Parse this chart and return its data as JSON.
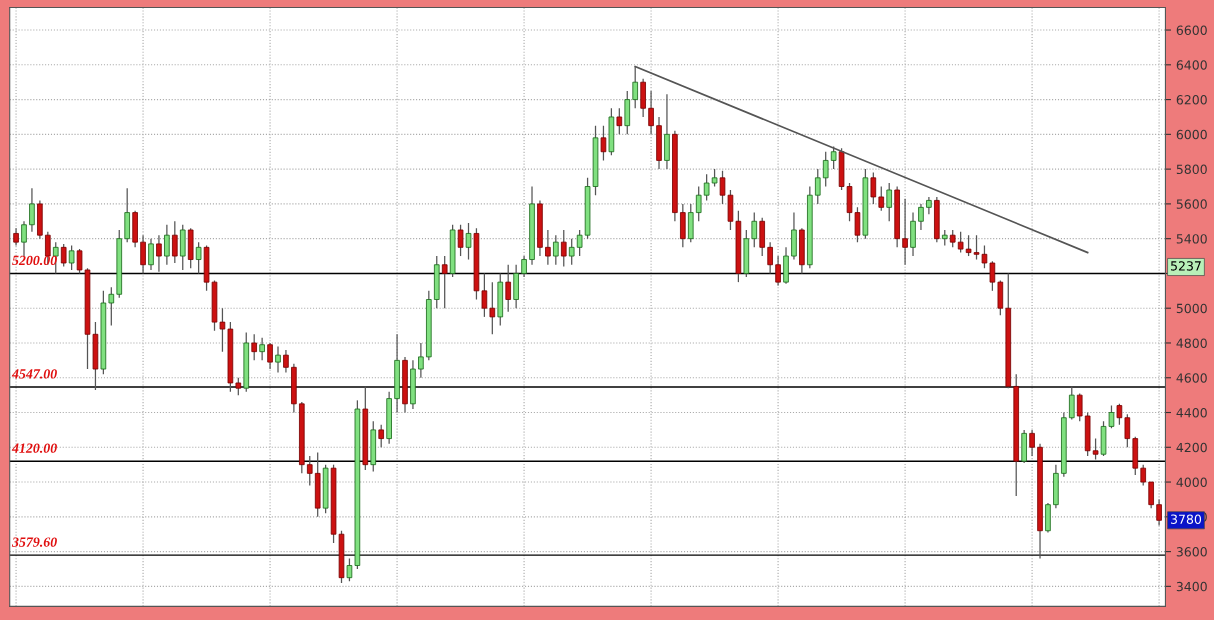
{
  "chart_data": {
    "type": "candlestick",
    "categories": [
      null,
      null,
      null,
      null,
      null,
      null,
      null,
      null,
      null,
      null,
      null,
      null,
      null,
      null,
      null,
      null,
      null,
      null,
      null,
      null,
      null,
      null,
      null,
      null,
      null,
      null,
      null,
      null,
      null,
      null,
      null,
      null,
      null,
      null,
      null,
      null,
      null,
      null,
      null,
      null,
      null,
      null,
      null,
      null,
      null,
      null,
      null,
      null,
      null,
      null,
      null,
      null,
      null,
      null,
      null,
      null,
      null,
      null,
      null,
      null,
      null,
      null,
      null,
      null,
      null,
      null,
      null,
      null,
      null,
      null,
      null,
      null,
      null,
      null,
      null,
      null,
      null,
      null,
      null,
      null,
      null,
      null,
      null,
      null,
      null,
      null,
      null,
      null,
      null,
      null,
      null,
      null,
      null,
      null,
      null,
      null,
      null,
      null,
      null,
      null,
      null,
      null,
      null,
      null,
      null,
      null,
      null,
      null,
      null,
      null,
      null,
      null,
      null,
      null,
      null,
      null,
      null,
      null,
      null,
      null,
      null,
      null,
      null,
      null,
      null,
      null,
      null,
      null,
      null,
      null,
      null,
      null,
      null,
      null,
      null,
      null,
      null,
      null,
      null,
      null,
      null,
      null,
      null,
      null,
      null
    ],
    "ohlc": [
      [
        5430,
        5460,
        5360,
        5380
      ],
      [
        5380,
        5500,
        5300,
        5480
      ],
      [
        5480,
        5690,
        5440,
        5600
      ],
      [
        5600,
        5620,
        5400,
        5420
      ],
      [
        5420,
        5440,
        5250,
        5300
      ],
      [
        5300,
        5380,
        5200,
        5350
      ],
      [
        5350,
        5370,
        5240,
        5260
      ],
      [
        5260,
        5360,
        5220,
        5330
      ],
      [
        5330,
        5340,
        5200,
        5220
      ],
      [
        5220,
        5230,
        4650,
        4850
      ],
      [
        4850,
        4920,
        4530,
        4650
      ],
      [
        4650,
        5100,
        4620,
        5030
      ],
      [
        5030,
        5120,
        4900,
        5080
      ],
      [
        5080,
        5450,
        5060,
        5400
      ],
      [
        5400,
        5690,
        5380,
        5550
      ],
      [
        5550,
        5560,
        5350,
        5380
      ],
      [
        5380,
        5420,
        5200,
        5250
      ],
      [
        5250,
        5400,
        5220,
        5370
      ],
      [
        5370,
        5420,
        5210,
        5300
      ],
      [
        5300,
        5480,
        5250,
        5420
      ],
      [
        5420,
        5500,
        5260,
        5300
      ],
      [
        5300,
        5480,
        5220,
        5450
      ],
      [
        5450,
        5460,
        5230,
        5280
      ],
      [
        5280,
        5380,
        5200,
        5350
      ],
      [
        5350,
        5360,
        5100,
        5150
      ],
      [
        5150,
        5160,
        4870,
        4920
      ],
      [
        4920,
        5000,
        4750,
        4880
      ],
      [
        4880,
        4920,
        4520,
        4570
      ],
      [
        4570,
        4600,
        4500,
        4540
      ],
      [
        4540,
        4860,
        4520,
        4800
      ],
      [
        4800,
        4850,
        4700,
        4750
      ],
      [
        4750,
        4830,
        4700,
        4790
      ],
      [
        4790,
        4800,
        4650,
        4690
      ],
      [
        4690,
        4780,
        4630,
        4730
      ],
      [
        4730,
        4760,
        4630,
        4660
      ],
      [
        4660,
        4680,
        4400,
        4450
      ],
      [
        4450,
        4460,
        4050,
        4100
      ],
      [
        4100,
        4150,
        3980,
        4050
      ],
      [
        4050,
        4170,
        3800,
        3850
      ],
      [
        3850,
        4100,
        3820,
        4080
      ],
      [
        4080,
        4100,
        3650,
        3700
      ],
      [
        3700,
        3720,
        3420,
        3450
      ],
      [
        3450,
        3560,
        3430,
        3520
      ],
      [
        3520,
        4470,
        3500,
        4420
      ],
      [
        4420,
        4550,
        4070,
        4100
      ],
      [
        4100,
        4350,
        4060,
        4300
      ],
      [
        4300,
        4330,
        4200,
        4250
      ],
      [
        4250,
        4520,
        4220,
        4480
      ],
      [
        4480,
        4850,
        4400,
        4700
      ],
      [
        4700,
        4720,
        4400,
        4450
      ],
      [
        4450,
        4700,
        4420,
        4650
      ],
      [
        4650,
        4800,
        4600,
        4720
      ],
      [
        4720,
        5100,
        4700,
        5050
      ],
      [
        5050,
        5300,
        5000,
        5250
      ],
      [
        5250,
        5300,
        5000,
        5200
      ],
      [
        5200,
        5480,
        5180,
        5450
      ],
      [
        5450,
        5480,
        5300,
        5350
      ],
      [
        5350,
        5490,
        5280,
        5430
      ],
      [
        5430,
        5460,
        5050,
        5100
      ],
      [
        5100,
        5200,
        4950,
        5000
      ],
      [
        5000,
        5150,
        4850,
        4950
      ],
      [
        4950,
        5200,
        4900,
        5150
      ],
      [
        5150,
        5250,
        4980,
        5050
      ],
      [
        5050,
        5250,
        5000,
        5200
      ],
      [
        5200,
        5300,
        5180,
        5280
      ],
      [
        5280,
        5700,
        5250,
        5600
      ],
      [
        5600,
        5620,
        5300,
        5350
      ],
      [
        5350,
        5450,
        5250,
        5300
      ],
      [
        5300,
        5420,
        5250,
        5380
      ],
      [
        5380,
        5450,
        5240,
        5300
      ],
      [
        5300,
        5400,
        5250,
        5350
      ],
      [
        5350,
        5450,
        5300,
        5420
      ],
      [
        5420,
        5750,
        5400,
        5700
      ],
      [
        5700,
        6050,
        5650,
        5980
      ],
      [
        5980,
        6050,
        5850,
        5900
      ],
      [
        5900,
        6150,
        5880,
        6100
      ],
      [
        6100,
        6150,
        6000,
        6050
      ],
      [
        6050,
        6250,
        6000,
        6200
      ],
      [
        6200,
        6390,
        6150,
        6300
      ],
      [
        6300,
        6320,
        6100,
        6150
      ],
      [
        6150,
        6250,
        6000,
        6050
      ],
      [
        6050,
        6100,
        5800,
        5850
      ],
      [
        5850,
        6230,
        5800,
        6000
      ],
      [
        6000,
        6020,
        5500,
        5550
      ],
      [
        5550,
        5600,
        5350,
        5400
      ],
      [
        5400,
        5600,
        5380,
        5550
      ],
      [
        5550,
        5700,
        5500,
        5650
      ],
      [
        5650,
        5770,
        5620,
        5720
      ],
      [
        5720,
        5800,
        5700,
        5750
      ],
      [
        5750,
        5790,
        5600,
        5650
      ],
      [
        5650,
        5680,
        5450,
        5500
      ],
      [
        5500,
        5560,
        5150,
        5200
      ],
      [
        5200,
        5450,
        5180,
        5400
      ],
      [
        5400,
        5550,
        5350,
        5500
      ],
      [
        5500,
        5520,
        5300,
        5350
      ],
      [
        5350,
        5380,
        5200,
        5250
      ],
      [
        5250,
        5300,
        5130,
        5150
      ],
      [
        5150,
        5350,
        5140,
        5300
      ],
      [
        5300,
        5550,
        5280,
        5450
      ],
      [
        5450,
        5460,
        5200,
        5250
      ],
      [
        5250,
        5700,
        5230,
        5650
      ],
      [
        5650,
        5800,
        5600,
        5750
      ],
      [
        5750,
        5900,
        5700,
        5850
      ],
      [
        5850,
        5930,
        5800,
        5900
      ],
      [
        5900,
        5920,
        5680,
        5700
      ],
      [
        5700,
        5720,
        5500,
        5550
      ],
      [
        5550,
        5580,
        5380,
        5420
      ],
      [
        5420,
        5800,
        5400,
        5750
      ],
      [
        5750,
        5780,
        5600,
        5640
      ],
      [
        5640,
        5700,
        5560,
        5580
      ],
      [
        5580,
        5720,
        5500,
        5680
      ],
      [
        5680,
        5700,
        5350,
        5400
      ],
      [
        5400,
        5630,
        5250,
        5350
      ],
      [
        5350,
        5550,
        5300,
        5500
      ],
      [
        5500,
        5600,
        5450,
        5580
      ],
      [
        5580,
        5640,
        5540,
        5620
      ],
      [
        5620,
        5640,
        5380,
        5400
      ],
      [
        5400,
        5450,
        5360,
        5420
      ],
      [
        5420,
        5450,
        5350,
        5380
      ],
      [
        5380,
        5440,
        5320,
        5340
      ],
      [
        5340,
        5420,
        5300,
        5320
      ],
      [
        5320,
        5420,
        5280,
        5310
      ],
      [
        5310,
        5360,
        5230,
        5260
      ],
      [
        5260,
        5270,
        5100,
        5150
      ],
      [
        5150,
        5160,
        4960,
        5000
      ],
      [
        5000,
        5200,
        4540,
        4550
      ],
      [
        4550,
        4620,
        3920,
        4120
      ],
      [
        4120,
        4300,
        4110,
        4280
      ],
      [
        4280,
        4300,
        4150,
        4200
      ],
      [
        4200,
        4220,
        3560,
        3720
      ],
      [
        3720,
        3880,
        3710,
        3870
      ],
      [
        3870,
        4100,
        3850,
        4050
      ],
      [
        4050,
        4400,
        4030,
        4370
      ],
      [
        4370,
        4550,
        4360,
        4500
      ],
      [
        4500,
        4510,
        4350,
        4380
      ],
      [
        4380,
        4400,
        4150,
        4180
      ],
      [
        4180,
        4250,
        4130,
        4160
      ],
      [
        4160,
        4350,
        4150,
        4320
      ],
      [
        4320,
        4440,
        4310,
        4400
      ],
      [
        4440,
        4450,
        4330,
        4370
      ],
      [
        4370,
        4390,
        4200,
        4250
      ],
      [
        4250,
        4260,
        4040,
        4080
      ],
      [
        4080,
        4100,
        3980,
        4000
      ],
      [
        4000,
        4000,
        3850,
        3870
      ],
      [
        3870,
        3900,
        3750,
        3780
      ]
    ],
    "colors": [
      "#cc1111",
      "#80e080",
      "#80e080",
      "#cc1111",
      "#cc1111",
      "#80e080",
      "#cc1111",
      "#80e080",
      "#cc1111",
      "#cc1111",
      "#cc1111",
      "#80e080",
      "#80e080",
      "#80e080",
      "#80e080",
      "#cc1111",
      "#cc1111",
      "#80e080",
      "#cc1111",
      "#80e080",
      "#cc1111",
      "#80e080",
      "#cc1111",
      "#80e080",
      "#cc1111",
      "#cc1111",
      "#cc1111",
      "#cc1111",
      "#cc1111",
      "#80e080",
      "#cc1111",
      "#80e080",
      "#cc1111",
      "#80e080",
      "#cc1111",
      "#cc1111",
      "#cc1111",
      "#cc1111",
      "#cc1111",
      "#80e080",
      "#cc1111",
      "#cc1111",
      "#80e080",
      "#80e080",
      "#cc1111",
      "#80e080",
      "#cc1111",
      "#80e080",
      "#80e080",
      "#cc1111",
      "#80e080",
      "#80e080",
      "#80e080",
      "#80e080",
      "#cc1111",
      "#80e080",
      "#cc1111",
      "#80e080",
      "#cc1111",
      "#cc1111",
      "#cc1111",
      "#80e080",
      "#cc1111",
      "#80e080",
      "#80e080",
      "#80e080",
      "#cc1111",
      "#cc1111",
      "#80e080",
      "#cc1111",
      "#80e080",
      "#80e080",
      "#80e080",
      "#80e080",
      "#cc1111",
      "#80e080",
      "#cc1111",
      "#80e080",
      "#80e080",
      "#cc1111",
      "#cc1111",
      "#cc1111",
      "#80e080",
      "#cc1111",
      "#cc1111",
      "#80e080",
      "#80e080",
      "#80e080",
      "#80e080",
      "#cc1111",
      "#cc1111",
      "#cc1111",
      "#80e080",
      "#80e080",
      "#cc1111",
      "#cc1111",
      "#cc1111",
      "#80e080",
      "#80e080",
      "#cc1111",
      "#80e080",
      "#80e080",
      "#80e080",
      "#80e080",
      "#cc1111",
      "#cc1111",
      "#cc1111",
      "#80e080",
      "#cc1111",
      "#cc1111",
      "#80e080",
      "#cc1111",
      "#cc1111",
      "#80e080",
      "#80e080",
      "#80e080",
      "#cc1111",
      "#80e080",
      "#cc1111",
      "#cc1111",
      "#cc1111",
      "#cc1111",
      "#cc1111",
      "#cc1111",
      "#cc1111",
      "#cc1111",
      "#cc1111",
      "#80e080",
      "#cc1111",
      "#cc1111",
      "#80e080",
      "#80e080",
      "#80e080",
      "#80e080",
      "#cc1111",
      "#cc1111",
      "#cc1111",
      "#80e080",
      "#80e080",
      "#cc1111",
      "#cc1111",
      "#cc1111",
      "#cc1111",
      "#cc1111",
      "#cc1111"
    ],
    "series": [
      {
        "type": "line",
        "values": [
          null,
          null,
          null,
          null,
          null,
          null,
          null,
          null,
          null,
          null,
          null,
          null,
          null,
          null,
          null,
          null,
          null,
          null,
          null,
          null,
          null,
          null,
          null,
          null,
          null,
          null,
          null,
          null,
          null,
          null,
          null,
          null,
          null,
          null,
          null,
          null,
          null,
          null,
          null,
          null,
          null,
          null,
          null,
          null,
          null,
          null,
          null,
          null,
          null,
          null,
          null,
          null,
          null,
          null,
          null,
          null,
          null,
          null,
          null,
          null,
          null,
          null,
          null,
          null,
          null,
          null,
          null,
          null,
          null,
          null,
          null,
          null,
          null,
          null,
          null,
          null,
          null,
          null,
          6390,
          null,
          null,
          null,
          null,
          null,
          null,
          null,
          null,
          null,
          null,
          null,
          null,
          null,
          null,
          null,
          null,
          null,
          null,
          null,
          null,
          null,
          null,
          null,
          null,
          null,
          null,
          null,
          null,
          null,
          null,
          null,
          null,
          null,
          null,
          null,
          null,
          null,
          null,
          null,
          null,
          null,
          null,
          null,
          null,
          null,
          null,
          null,
          null,
          null,
          null,
          null,
          null,
          null,
          null,
          null,
          null,
          5320,
          null,
          null,
          null,
          null,
          null,
          null,
          null,
          null,
          null
        ],
        "color": "#555555"
      }
    ],
    "ylim": [
      3285,
      6730
    ],
    "yticks": [
      3400,
      3600,
      3800,
      4000,
      4200,
      4400,
      4600,
      4800,
      5000,
      {
        "value": 5200,
        "label": null
      },
      5400,
      5600,
      5800,
      6000,
      6200,
      6400,
      6600
    ],
    "tick_labels": "y",
    "grid": true,
    "ref_lines": [
      {
        "axis": "y",
        "value": 5200,
        "label": "5200.00",
        "color": "#000000"
      },
      {
        "axis": "y",
        "value": 4547,
        "label": "4547.00",
        "color": "#000000"
      },
      {
        "axis": "y",
        "value": 4120,
        "label": "4120.00",
        "color": "#000000"
      },
      {
        "axis": "y",
        "value": 3579.6,
        "label": "3579.60",
        "color": "#000000"
      }
    ],
    "annotations": [
      {
        "text": "5237",
        "y": 5237
      },
      {
        "text": "3780",
        "y": 3780
      }
    ]
  }
}
